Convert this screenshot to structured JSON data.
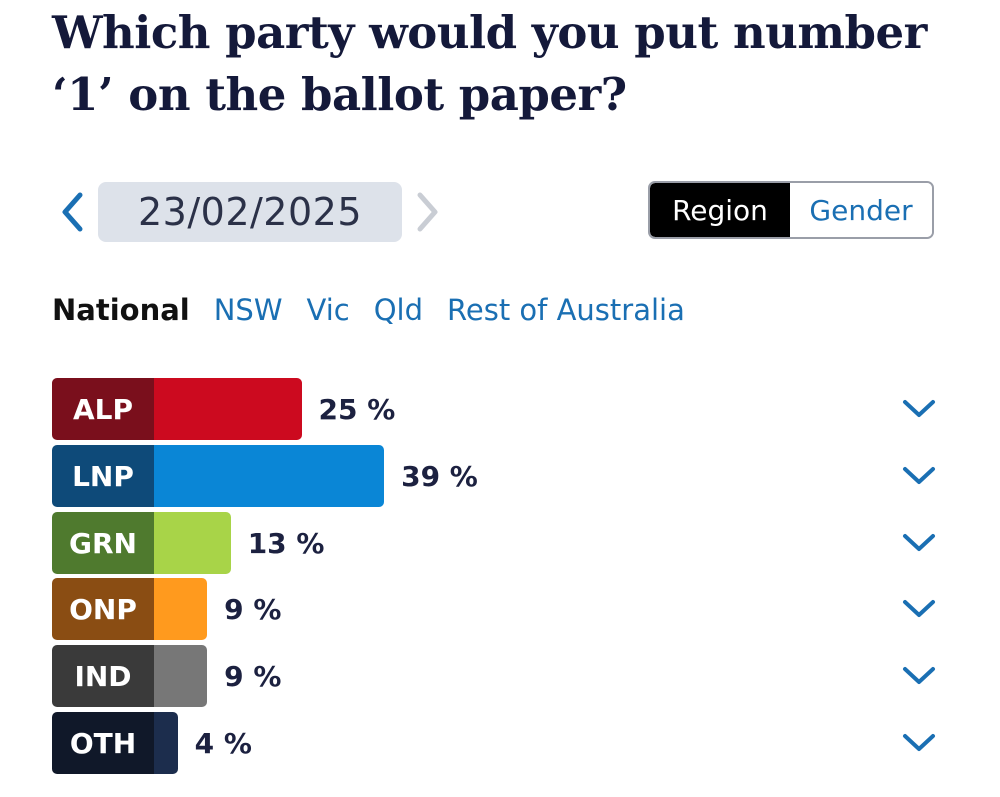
{
  "title": "Which party would you put number ‘1’ on the ballot paper?",
  "date_nav": {
    "date": "23/02/2025",
    "prev_icon": "chevron-left-icon",
    "next_icon": "chevron-right-icon"
  },
  "toggle": {
    "options": [
      "Region",
      "Gender"
    ],
    "selected": "Region"
  },
  "region_tabs": {
    "items": [
      "National",
      "NSW",
      "Vic",
      "Qld",
      "Rest of Australia"
    ],
    "selected": "National"
  },
  "colors": {
    "link": "#1a6fb3",
    "date_bg": "#dde2ea",
    "expand_icon": "#1a6fb3"
  },
  "chart_data": {
    "type": "bar",
    "orientation": "horizontal",
    "categories": [
      "ALP",
      "LNP",
      "GRN",
      "ONP",
      "IND",
      "OTH"
    ],
    "values": [
      25,
      39,
      13,
      9,
      9,
      4
    ],
    "value_labels": [
      "25 %",
      "39 %",
      "13 %",
      "9 %",
      "9 %",
      "4 %"
    ],
    "unit": "%",
    "colors": {
      "ALP": {
        "label": "#7a0f1c",
        "bar": "#cc0a1f"
      },
      "LNP": {
        "label": "#0e4a79",
        "bar": "#0a86d6"
      },
      "GRN": {
        "label": "#4f7a2e",
        "bar": "#a8d448"
      },
      "ONP": {
        "label": "#8a4d13",
        "bar": "#ff9a1e"
      },
      "IND": {
        "label": "#3a3a3a",
        "bar": "#777777"
      },
      "OTH": {
        "label": "#101829",
        "bar": "#1c2d4d"
      }
    }
  }
}
